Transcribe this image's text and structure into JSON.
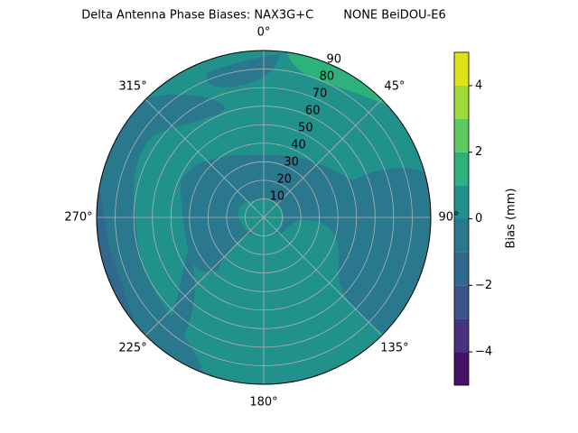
{
  "chart_data": {
    "type": "polar_contour",
    "title": "Delta Antenna Phase Biases: NAX3G+C        NONE BeiDOU-E6",
    "colorbar_label": "Bias (mm)",
    "theta_zero": "N",
    "theta_direction": "clockwise",
    "rlim": [
      0,
      90
    ],
    "rticks": [
      10,
      20,
      30,
      40,
      50,
      60,
      70,
      80,
      90
    ],
    "thetaticks": [
      {
        "value": 0,
        "label": "0°"
      },
      {
        "value": 45,
        "label": "45°"
      },
      {
        "value": 90,
        "label": "90°"
      },
      {
        "value": 135,
        "label": "135°"
      },
      {
        "value": 180,
        "label": "180°"
      },
      {
        "value": 225,
        "label": "225°"
      },
      {
        "value": 270,
        "label": "270°"
      },
      {
        "value": 315,
        "label": "315°"
      }
    ],
    "levels": [
      -5,
      -4,
      -3,
      -2,
      -1,
      0,
      1,
      2,
      3,
      4,
      5
    ],
    "colors": [
      "#471164",
      "#46327e",
      "#3b528b",
      "#31688e",
      "#2a788e",
      "#21918c",
      "#2db27d",
      "#5ec962",
      "#a0da39",
      "#dde318"
    ],
    "clim": [
      -5,
      5
    ],
    "cticks": [
      {
        "value": -4,
        "label": "−4"
      },
      {
        "value": -2,
        "label": "−2"
      },
      {
        "value": 0,
        "label": "0"
      },
      {
        "value": 2,
        "label": "2"
      },
      {
        "value": 4,
        "label": "4"
      }
    ],
    "grid": true
  }
}
